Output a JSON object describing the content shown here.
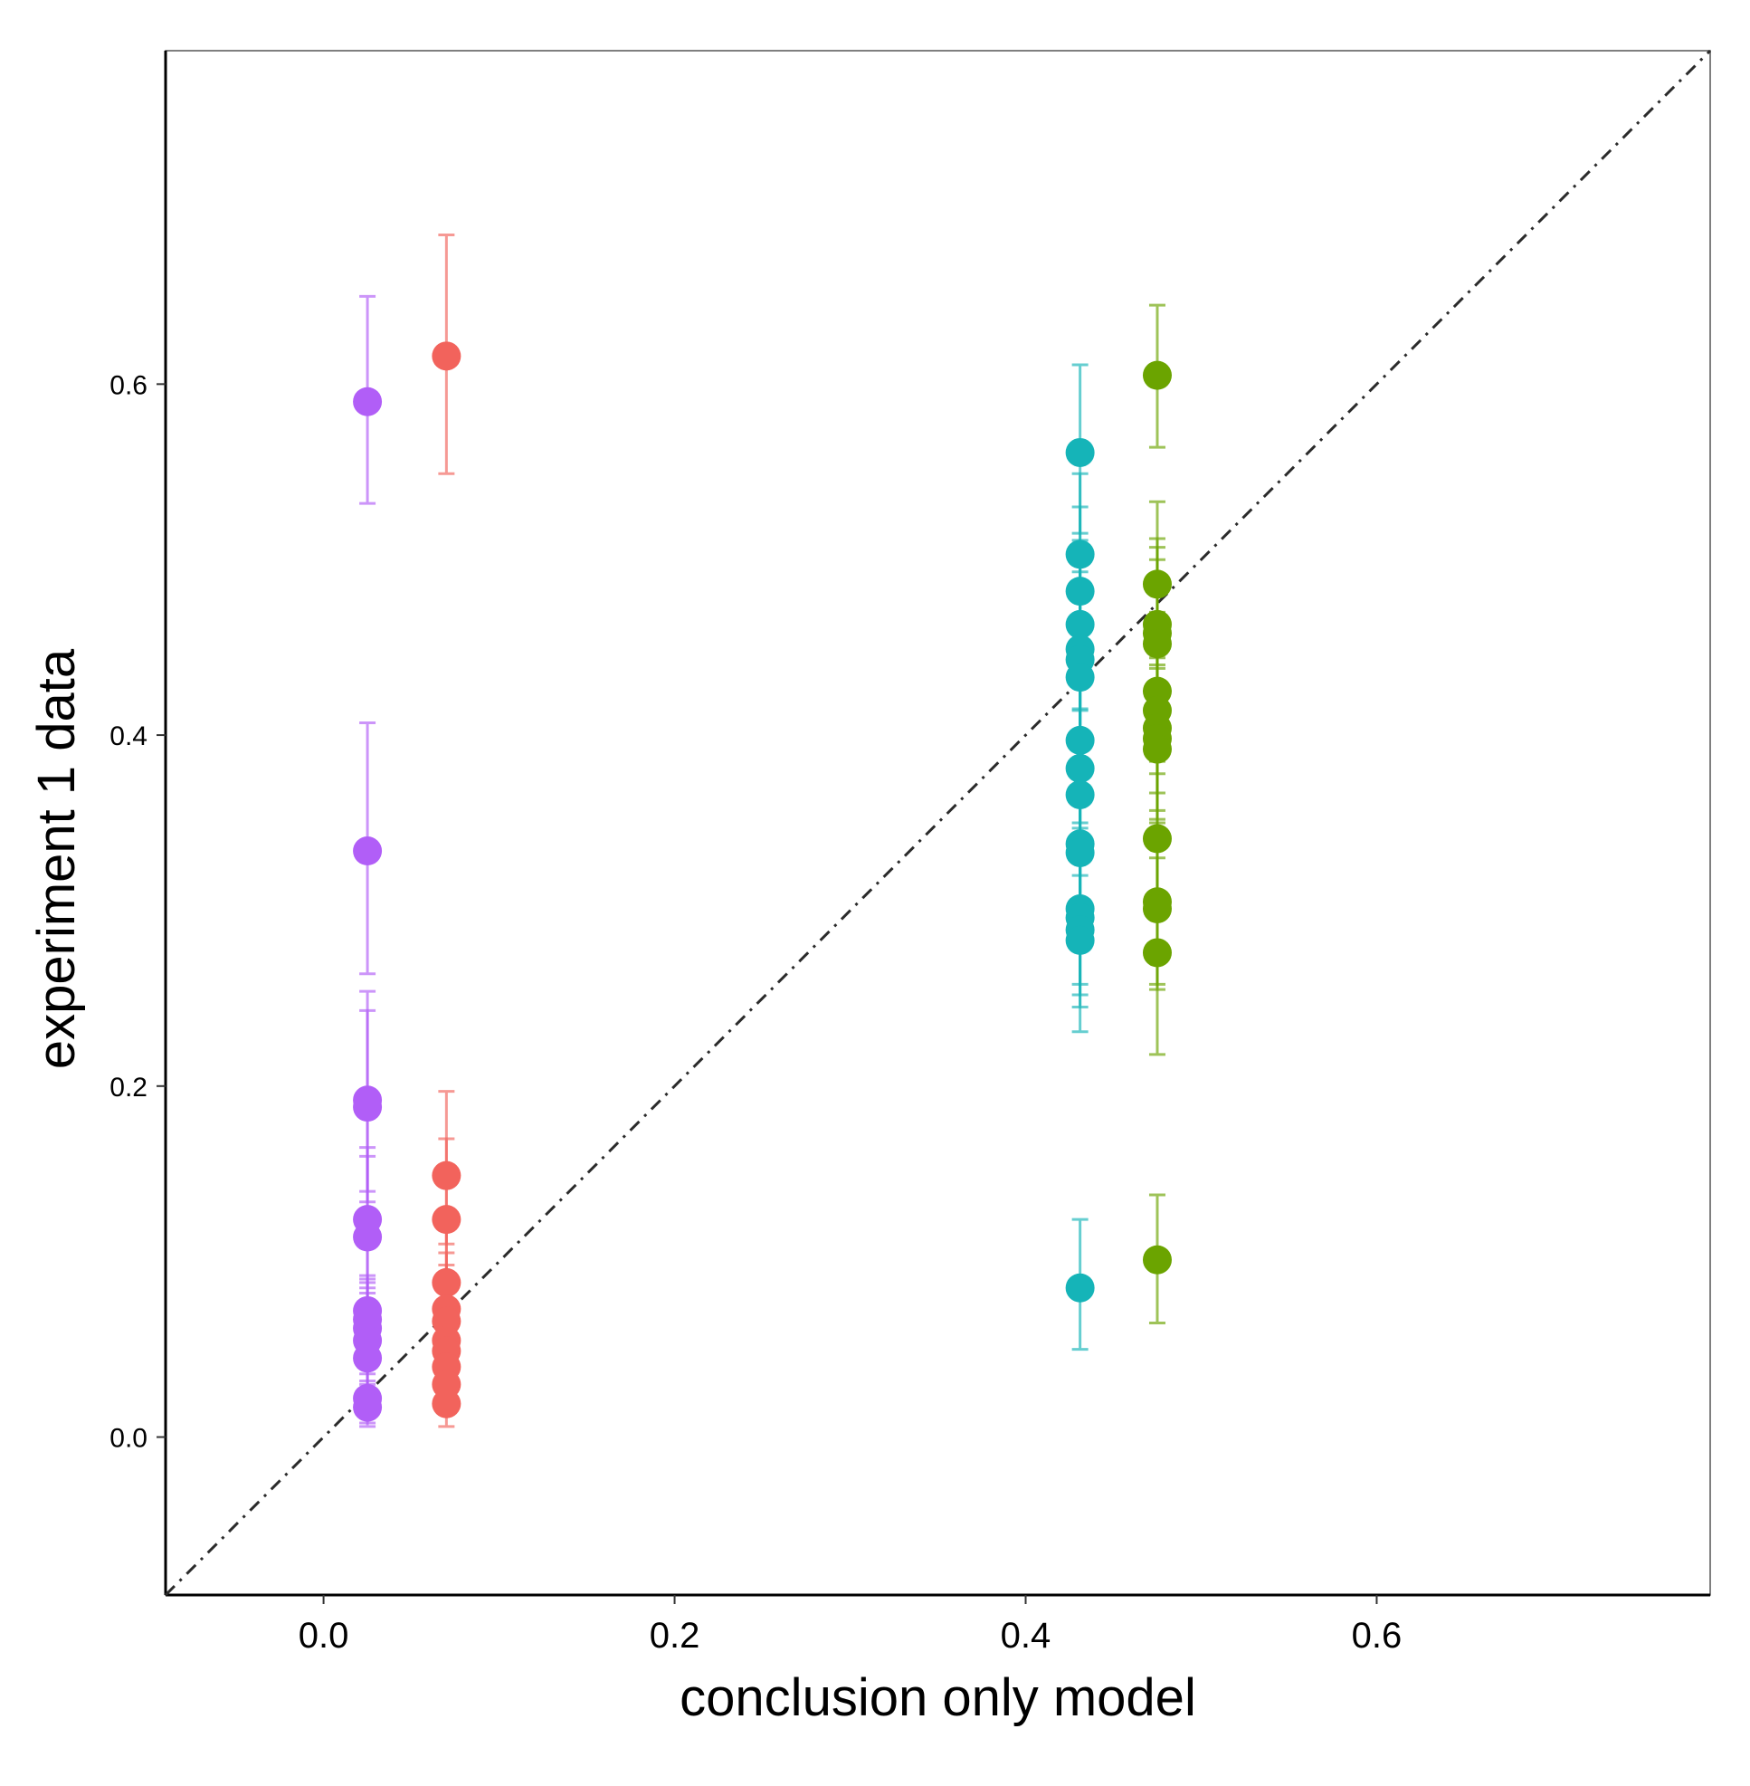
{
  "chart_data": {
    "type": "scatter",
    "title": "",
    "xlabel": "conclusion only model",
    "ylabel": "experiment 1 data",
    "xlim": [
      -0.09,
      0.79
    ],
    "ylim": [
      -0.09,
      0.79
    ],
    "x_ticks": [
      0.0,
      0.2,
      0.4,
      0.6
    ],
    "y_ticks": [
      0.0,
      0.2,
      0.4,
      0.6
    ],
    "x_tick_labels": [
      "0.0",
      "0.2",
      "0.4",
      "0.6"
    ],
    "y_tick_labels": [
      "0.0",
      "0.2",
      "0.4",
      "0.6"
    ],
    "grid": false,
    "legend": "none",
    "reference_line": {
      "slope": 1,
      "intercept": 0,
      "style": "dash-dot",
      "color": "#2b2b2b"
    },
    "error_bars": true,
    "series": [
      {
        "color": "#b15ef7",
        "points": [
          {
            "x": 0.025,
            "y": 0.59,
            "lo": 0.532,
            "hi": 0.65
          },
          {
            "x": 0.025,
            "y": 0.334,
            "lo": 0.264,
            "hi": 0.407
          },
          {
            "x": 0.025,
            "y": 0.192,
            "lo": 0.14,
            "hi": 0.254
          },
          {
            "x": 0.025,
            "y": 0.188,
            "lo": 0.134,
            "hi": 0.243
          },
          {
            "x": 0.025,
            "y": 0.124,
            "lo": 0.085,
            "hi": 0.165
          },
          {
            "x": 0.025,
            "y": 0.114,
            "lo": 0.078,
            "hi": 0.16
          },
          {
            "x": 0.025,
            "y": 0.072,
            "lo": 0.043,
            "hi": 0.092
          },
          {
            "x": 0.025,
            "y": 0.067,
            "lo": 0.04,
            "hi": 0.09
          },
          {
            "x": 0.025,
            "y": 0.062,
            "lo": 0.036,
            "hi": 0.088
          },
          {
            "x": 0.025,
            "y": 0.055,
            "lo": 0.03,
            "hi": 0.082
          },
          {
            "x": 0.025,
            "y": 0.045,
            "lo": 0.022,
            "hi": 0.07
          },
          {
            "x": 0.025,
            "y": 0.022,
            "lo": 0.008,
            "hi": 0.04
          },
          {
            "x": 0.025,
            "y": 0.017,
            "lo": 0.006,
            "hi": 0.032
          }
        ]
      },
      {
        "color": "#f2635c",
        "points": [
          {
            "x": 0.07,
            "y": 0.616,
            "lo": 0.549,
            "hi": 0.685
          },
          {
            "x": 0.07,
            "y": 0.149,
            "lo": 0.11,
            "hi": 0.197
          },
          {
            "x": 0.07,
            "y": 0.124,
            "lo": 0.088,
            "hi": 0.17
          },
          {
            "x": 0.07,
            "y": 0.088,
            "lo": 0.058,
            "hi": 0.125
          },
          {
            "x": 0.07,
            "y": 0.073,
            "lo": 0.046,
            "hi": 0.105
          },
          {
            "x": 0.07,
            "y": 0.066,
            "lo": 0.04,
            "hi": 0.098
          },
          {
            "x": 0.07,
            "y": 0.055,
            "lo": 0.032,
            "hi": 0.085
          },
          {
            "x": 0.07,
            "y": 0.049,
            "lo": 0.028,
            "hi": 0.078
          },
          {
            "x": 0.07,
            "y": 0.04,
            "lo": 0.02,
            "hi": 0.066
          },
          {
            "x": 0.07,
            "y": 0.03,
            "lo": 0.013,
            "hi": 0.055
          },
          {
            "x": 0.07,
            "y": 0.019,
            "lo": 0.006,
            "hi": 0.04
          }
        ]
      },
      {
        "color": "#15b4b8",
        "points": [
          {
            "x": 0.431,
            "y": 0.561,
            "lo": 0.515,
            "hi": 0.611
          },
          {
            "x": 0.431,
            "y": 0.503,
            "lo": 0.455,
            "hi": 0.549
          },
          {
            "x": 0.431,
            "y": 0.482,
            "lo": 0.434,
            "hi": 0.53
          },
          {
            "x": 0.431,
            "y": 0.463,
            "lo": 0.415,
            "hi": 0.511
          },
          {
            "x": 0.431,
            "y": 0.449,
            "lo": 0.402,
            "hi": 0.498
          },
          {
            "x": 0.431,
            "y": 0.443,
            "lo": 0.396,
            "hi": 0.493
          },
          {
            "x": 0.431,
            "y": 0.433,
            "lo": 0.386,
            "hi": 0.48
          },
          {
            "x": 0.431,
            "y": 0.397,
            "lo": 0.35,
            "hi": 0.444
          },
          {
            "x": 0.431,
            "y": 0.381,
            "lo": 0.335,
            "hi": 0.429
          },
          {
            "x": 0.431,
            "y": 0.366,
            "lo": 0.32,
            "hi": 0.414
          },
          {
            "x": 0.431,
            "y": 0.338,
            "lo": 0.293,
            "hi": 0.385
          },
          {
            "x": 0.431,
            "y": 0.333,
            "lo": 0.288,
            "hi": 0.38
          },
          {
            "x": 0.431,
            "y": 0.301,
            "lo": 0.258,
            "hi": 0.347
          },
          {
            "x": 0.431,
            "y": 0.296,
            "lo": 0.252,
            "hi": 0.342
          },
          {
            "x": 0.431,
            "y": 0.289,
            "lo": 0.245,
            "hi": 0.334
          },
          {
            "x": 0.431,
            "y": 0.283,
            "lo": 0.231,
            "hi": 0.33
          },
          {
            "x": 0.431,
            "y": 0.085,
            "lo": 0.05,
            "hi": 0.124
          }
        ]
      },
      {
        "color": "#6ba400",
        "points": [
          {
            "x": 0.475,
            "y": 0.605,
            "lo": 0.564,
            "hi": 0.645
          },
          {
            "x": 0.475,
            "y": 0.486,
            "lo": 0.44,
            "hi": 0.533
          },
          {
            "x": 0.475,
            "y": 0.463,
            "lo": 0.418,
            "hi": 0.512
          },
          {
            "x": 0.475,
            "y": 0.458,
            "lo": 0.412,
            "hi": 0.507
          },
          {
            "x": 0.475,
            "y": 0.452,
            "lo": 0.405,
            "hi": 0.5
          },
          {
            "x": 0.475,
            "y": 0.425,
            "lo": 0.378,
            "hi": 0.47
          },
          {
            "x": 0.475,
            "y": 0.414,
            "lo": 0.367,
            "hi": 0.46
          },
          {
            "x": 0.475,
            "y": 0.404,
            "lo": 0.357,
            "hi": 0.45
          },
          {
            "x": 0.475,
            "y": 0.398,
            "lo": 0.352,
            "hi": 0.444
          },
          {
            "x": 0.475,
            "y": 0.392,
            "lo": 0.346,
            "hi": 0.438
          },
          {
            "x": 0.475,
            "y": 0.341,
            "lo": 0.296,
            "hi": 0.385
          },
          {
            "x": 0.475,
            "y": 0.305,
            "lo": 0.258,
            "hi": 0.35
          },
          {
            "x": 0.475,
            "y": 0.301,
            "lo": 0.255,
            "hi": 0.346
          },
          {
            "x": 0.475,
            "y": 0.276,
            "lo": 0.218,
            "hi": 0.33
          },
          {
            "x": 0.475,
            "y": 0.101,
            "lo": 0.065,
            "hi": 0.138
          }
        ]
      }
    ]
  }
}
